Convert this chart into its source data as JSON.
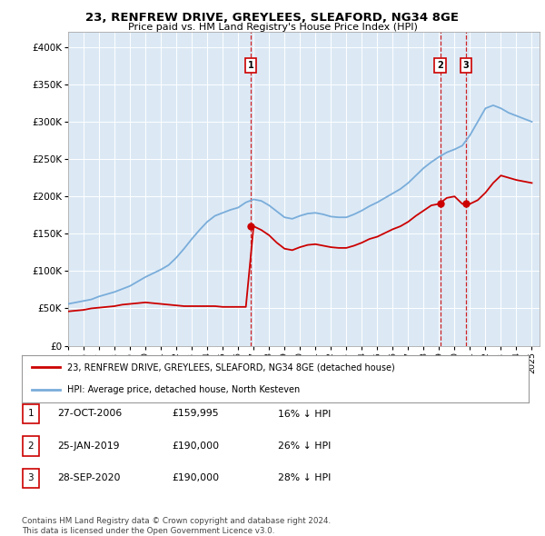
{
  "title1": "23, RENFREW DRIVE, GREYLEES, SLEAFORD, NG34 8GE",
  "title2": "Price paid vs. HM Land Registry's House Price Index (HPI)",
  "legend_line1": "23, RENFREW DRIVE, GREYLEES, SLEAFORD, NG34 8GE (detached house)",
  "legend_line2": "HPI: Average price, detached house, North Kesteven",
  "footnote1": "Contains HM Land Registry data © Crown copyright and database right 2024.",
  "footnote2": "This data is licensed under the Open Government Licence v3.0.",
  "sale_color": "#cc0000",
  "hpi_color": "#7aadda",
  "plot_bg": "#dce9f5",
  "ylim": [
    0,
    420000
  ],
  "yticks": [
    0,
    50000,
    100000,
    150000,
    200000,
    250000,
    300000,
    350000,
    400000
  ],
  "ytick_labels": [
    "£0",
    "£50K",
    "£100K",
    "£150K",
    "£200K",
    "£250K",
    "£300K",
    "£350K",
    "£400K"
  ],
  "transactions": [
    {
      "label": "1",
      "date": "27-OCT-2006",
      "price": 159995,
      "price_str": "£159,995",
      "pct": "16%",
      "x_year": 2006.82
    },
    {
      "label": "2",
      "date": "25-JAN-2019",
      "price": 190000,
      "price_str": "£190,000",
      "pct": "26%",
      "x_year": 2019.07
    },
    {
      "label": "3",
      "date": "28-SEP-2020",
      "price": 190000,
      "price_str": "£190,000",
      "pct": "28%",
      "x_year": 2020.75
    }
  ],
  "hpi_years": [
    1995.0,
    1995.5,
    1996.0,
    1996.5,
    1997.0,
    1997.5,
    1998.0,
    1998.5,
    1999.0,
    1999.5,
    2000.0,
    2000.5,
    2001.0,
    2001.5,
    2002.0,
    2002.5,
    2003.0,
    2003.5,
    2004.0,
    2004.5,
    2005.0,
    2005.5,
    2006.0,
    2006.5,
    2007.0,
    2007.5,
    2008.0,
    2008.5,
    2009.0,
    2009.5,
    2010.0,
    2010.5,
    2011.0,
    2011.5,
    2012.0,
    2012.5,
    2013.0,
    2013.5,
    2014.0,
    2014.5,
    2015.0,
    2015.5,
    2016.0,
    2016.5,
    2017.0,
    2017.5,
    2018.0,
    2018.5,
    2019.0,
    2019.5,
    2020.0,
    2020.5,
    2021.0,
    2021.5,
    2022.0,
    2022.5,
    2023.0,
    2023.5,
    2024.0,
    2024.5,
    2025.0
  ],
  "hpi_vals": [
    56000,
    58000,
    60000,
    62000,
    66000,
    69000,
    72000,
    76000,
    80000,
    86000,
    92000,
    97000,
    102000,
    108000,
    118000,
    130000,
    143000,
    155000,
    166000,
    174000,
    178000,
    182000,
    185000,
    192000,
    196000,
    194000,
    188000,
    180000,
    172000,
    170000,
    174000,
    177000,
    178000,
    176000,
    173000,
    172000,
    172000,
    176000,
    181000,
    187000,
    192000,
    198000,
    204000,
    210000,
    218000,
    228000,
    238000,
    246000,
    253000,
    259000,
    263000,
    268000,
    282000,
    300000,
    318000,
    322000,
    318000,
    312000,
    308000,
    304000,
    300000
  ],
  "sale_years": [
    1995.0,
    1995.5,
    1996.0,
    1996.5,
    1997.0,
    1997.5,
    1998.0,
    1998.5,
    1999.0,
    1999.5,
    2000.0,
    2000.5,
    2001.0,
    2001.5,
    2002.0,
    2002.5,
    2003.0,
    2003.5,
    2004.0,
    2004.5,
    2005.0,
    2005.5,
    2006.0,
    2006.5,
    2007.0,
    2007.5,
    2008.0,
    2008.5,
    2009.0,
    2009.5,
    2010.0,
    2010.5,
    2011.0,
    2011.5,
    2012.0,
    2012.5,
    2013.0,
    2013.5,
    2014.0,
    2014.5,
    2015.0,
    2015.5,
    2016.0,
    2016.5,
    2017.0,
    2017.5,
    2018.0,
    2018.5,
    2019.0,
    2019.5,
    2020.0,
    2020.5,
    2021.0,
    2021.5,
    2022.0,
    2022.5,
    2023.0,
    2023.5,
    2024.0,
    2024.5,
    2025.0
  ],
  "sale_vals": [
    46000,
    47000,
    48000,
    50000,
    51000,
    52000,
    53000,
    55000,
    56000,
    57000,
    58000,
    57000,
    56000,
    55000,
    54000,
    53000,
    53000,
    53000,
    53000,
    53000,
    52000,
    52000,
    52000,
    52000,
    159995,
    155000,
    148000,
    138000,
    130000,
    128000,
    132000,
    135000,
    136000,
    134000,
    132000,
    131000,
    131000,
    134000,
    138000,
    143000,
    146000,
    151000,
    156000,
    160000,
    166000,
    174000,
    181000,
    188000,
    190000,
    198000,
    200000,
    190000,
    190000,
    195000,
    205000,
    218000,
    228000,
    225000,
    222000,
    220000,
    218000
  ],
  "x_min": 1995,
  "x_max": 2025.5
}
